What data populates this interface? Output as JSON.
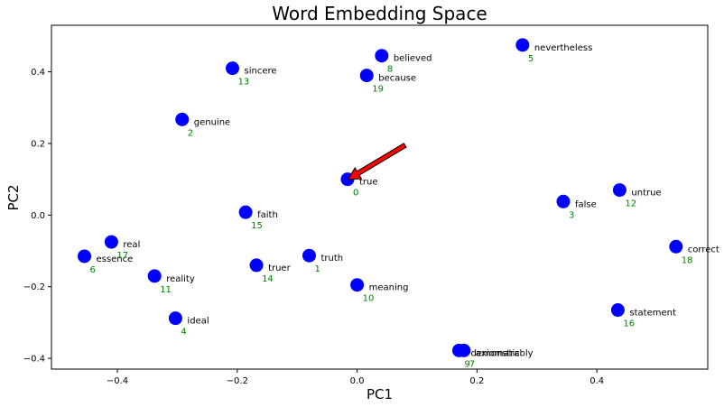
{
  "chart_data": {
    "type": "scatter",
    "title": "Word Embedding Space",
    "xlabel": "PC1",
    "ylabel": "PC2",
    "xlim": [
      -0.51,
      0.585
    ],
    "ylim": [
      -0.43,
      0.53
    ],
    "xticks": [
      -0.4,
      -0.2,
      0.0,
      0.2,
      0.4
    ],
    "yticks": [
      -0.4,
      -0.2,
      0.0,
      0.2,
      0.4
    ],
    "xtick_labels": [
      "−0.4",
      "−0.2",
      "0.0",
      "0.2",
      "0.4"
    ],
    "ytick_labels": [
      "−0.4",
      "−0.2",
      "0.0",
      "0.2",
      "0.4"
    ],
    "grid": false,
    "point_color": "#0000ff",
    "label_color": "#000000",
    "index_color": "#008000",
    "highlight_color": "#ff0000",
    "arrow_color": "#ff0000",
    "arrow": {
      "from": [
        0.08,
        0.195
      ],
      "to": [
        -0.015,
        0.1
      ]
    },
    "points": [
      {
        "word": "true",
        "index": "0",
        "x": -0.016,
        "y": 0.1,
        "highlight": true
      },
      {
        "word": "truth",
        "index": "1",
        "x": -0.08,
        "y": -0.113
      },
      {
        "word": "genuine",
        "index": "2",
        "x": -0.292,
        "y": 0.267
      },
      {
        "word": "false",
        "index": "3",
        "x": 0.344,
        "y": 0.038
      },
      {
        "word": "ideal",
        "index": "4",
        "x": -0.303,
        "y": -0.288
      },
      {
        "word": "nevertheless",
        "index": "5",
        "x": 0.276,
        "y": 0.475
      },
      {
        "word": "essence",
        "index": "6",
        "x": -0.455,
        "y": -0.115
      },
      {
        "word": "axiomatic",
        "index": "7",
        "x": 0.178,
        "y": -0.378
      },
      {
        "word": "believed",
        "index": "8",
        "x": 0.041,
        "y": 0.445
      },
      {
        "word": "demonstrably",
        "index": "9",
        "x": 0.17,
        "y": -0.378
      },
      {
        "word": "meaning",
        "index": "10",
        "x": 0.0,
        "y": -0.195
      },
      {
        "word": "reality",
        "index": "11",
        "x": -0.338,
        "y": -0.17
      },
      {
        "word": "untrue",
        "index": "12",
        "x": 0.438,
        "y": 0.07
      },
      {
        "word": "sincere",
        "index": "13",
        "x": -0.208,
        "y": 0.41
      },
      {
        "word": "truer",
        "index": "14",
        "x": -0.168,
        "y": -0.14
      },
      {
        "word": "faith",
        "index": "15",
        "x": -0.186,
        "y": 0.008
      },
      {
        "word": "statement",
        "index": "16",
        "x": 0.435,
        "y": -0.265
      },
      {
        "word": "real",
        "index": "17",
        "x": -0.41,
        "y": -0.075
      },
      {
        "word": "correct",
        "index": "18",
        "x": 0.532,
        "y": -0.088
      },
      {
        "word": "because",
        "index": "19",
        "x": 0.016,
        "y": 0.39
      }
    ]
  }
}
